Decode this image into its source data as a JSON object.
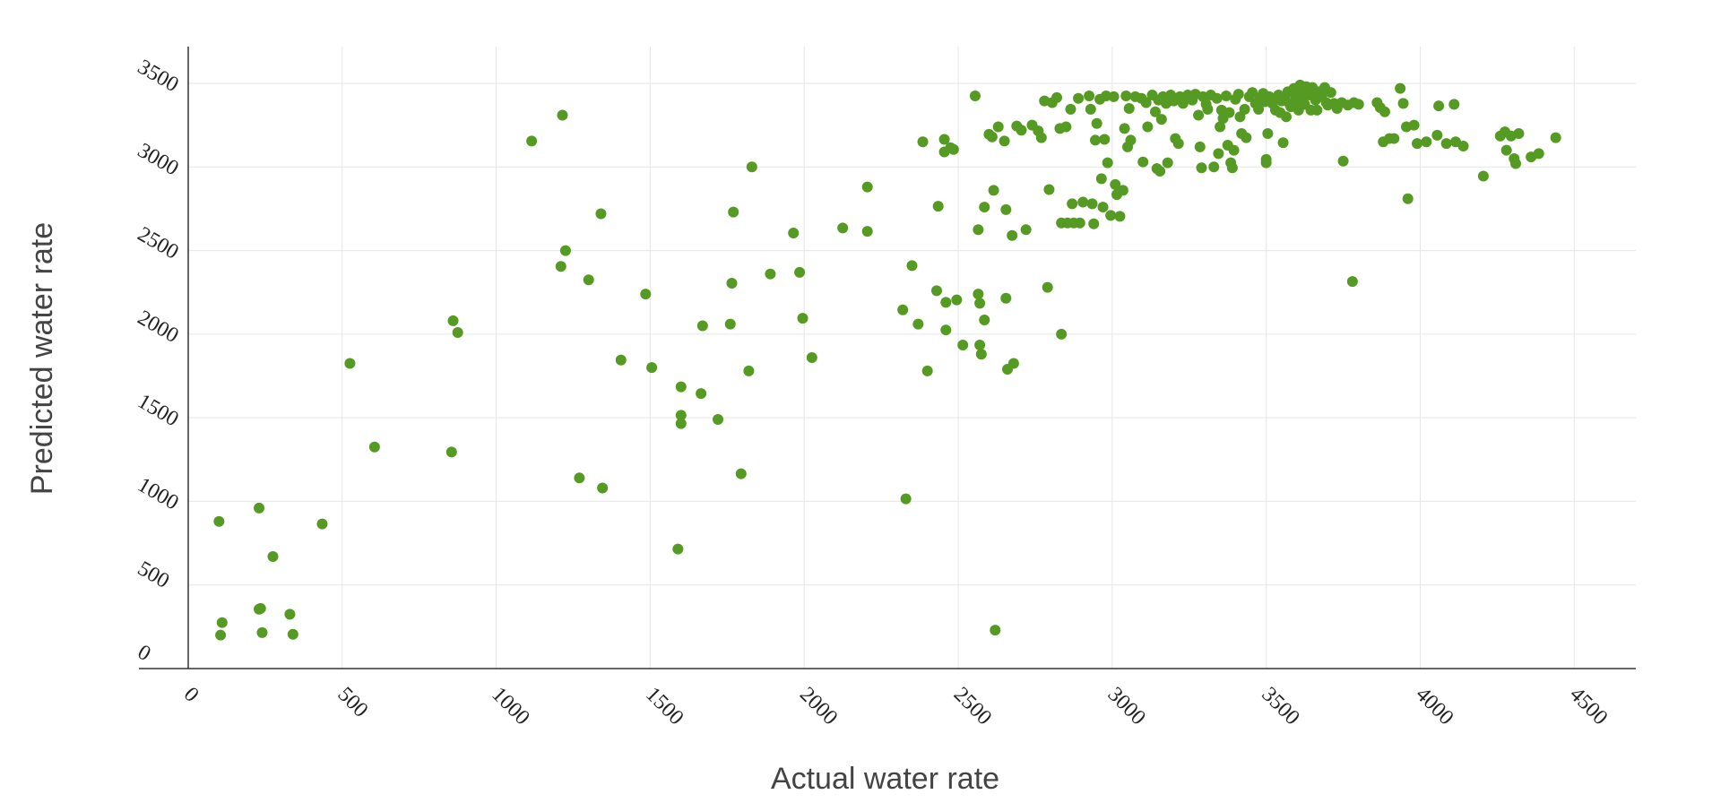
{
  "chart_data": {
    "type": "scatter",
    "title": "",
    "xlabel": "Actual water rate",
    "ylabel": "Predicted water rate",
    "xlim": [
      0,
      4700
    ],
    "ylim": [
      0,
      3500
    ],
    "xticks": [
      0,
      500,
      1000,
      1500,
      2000,
      2500,
      3000,
      3500,
      4000,
      4500
    ],
    "yticks": [
      0,
      500,
      1000,
      1500,
      2000,
      2500,
      3000,
      3500
    ],
    "xtick_labels": [
      "0",
      "500",
      "1000",
      "1500",
      "2000",
      "2500",
      "3000",
      "3500",
      "4000",
      "4500"
    ],
    "ytick_labels": [
      "0",
      "500",
      "1000",
      "1500",
      "2000",
      "2500",
      "3000",
      "3500"
    ],
    "grid": true,
    "legend": "none",
    "point_color": "#559a22",
    "series": [
      {
        "points": [
          [
            100,
            880
          ],
          [
            230,
            960
          ],
          [
            275,
            670
          ],
          [
            435,
            865
          ],
          [
            110,
            275
          ],
          [
            230,
            355
          ],
          [
            235,
            360
          ],
          [
            330,
            325
          ],
          [
            105,
            200
          ],
          [
            240,
            215
          ],
          [
            340,
            205
          ],
          [
            525,
            1825
          ],
          [
            605,
            1325
          ],
          [
            855,
            1295
          ],
          [
            860,
            2080
          ],
          [
            875,
            2010
          ],
          [
            1115,
            3155
          ],
          [
            1215,
            3310
          ],
          [
            1210,
            2405
          ],
          [
            1225,
            2500
          ],
          [
            1300,
            2325
          ],
          [
            1340,
            2720
          ],
          [
            1270,
            1140
          ],
          [
            1345,
            1080
          ],
          [
            1485,
            2240
          ],
          [
            1405,
            1845
          ],
          [
            1505,
            1800
          ],
          [
            1590,
            715
          ],
          [
            1600,
            1685
          ],
          [
            1600,
            1515
          ],
          [
            1600,
            1465
          ],
          [
            1665,
            1645
          ],
          [
            1670,
            2050
          ],
          [
            1720,
            1490
          ],
          [
            1760,
            2060
          ],
          [
            1765,
            2305
          ],
          [
            1770,
            2730
          ],
          [
            1795,
            1165
          ],
          [
            1820,
            1780
          ],
          [
            1830,
            3000
          ],
          [
            1890,
            2360
          ],
          [
            1965,
            2605
          ],
          [
            1985,
            2370
          ],
          [
            1995,
            2095
          ],
          [
            2025,
            1860
          ],
          [
            2125,
            2635
          ],
          [
            2205,
            2615
          ],
          [
            2205,
            2880
          ],
          [
            2320,
            2145
          ],
          [
            2330,
            1015
          ],
          [
            2350,
            2410
          ],
          [
            2370,
            2060
          ],
          [
            2385,
            3150
          ],
          [
            2400,
            1780
          ],
          [
            2430,
            2260
          ],
          [
            2435,
            2765
          ],
          [
            2455,
            3090
          ],
          [
            2455,
            3165
          ],
          [
            2460,
            2190
          ],
          [
            2460,
            2025
          ],
          [
            2475,
            3115
          ],
          [
            2485,
            3105
          ],
          [
            2495,
            2205
          ],
          [
            2515,
            1935
          ],
          [
            2555,
            3425
          ],
          [
            2565,
            2625
          ],
          [
            2565,
            2240
          ],
          [
            2570,
            2185
          ],
          [
            2570,
            1935
          ],
          [
            2575,
            1880
          ],
          [
            2585,
            2760
          ],
          [
            2585,
            2085
          ],
          [
            2600,
            3195
          ],
          [
            2610,
            3180
          ],
          [
            2615,
            2860
          ],
          [
            2620,
            230
          ],
          [
            2630,
            3240
          ],
          [
            2650,
            3155
          ],
          [
            2655,
            2215
          ],
          [
            2655,
            2745
          ],
          [
            2660,
            1790
          ],
          [
            2675,
            2590
          ],
          [
            2680,
            1825
          ],
          [
            2690,
            3245
          ],
          [
            2705,
            3220
          ],
          [
            2720,
            2625
          ],
          [
            2740,
            3250
          ],
          [
            2760,
            3215
          ],
          [
            2770,
            3175
          ],
          [
            2780,
            3395
          ],
          [
            2790,
            2280
          ],
          [
            2795,
            2865
          ],
          [
            2805,
            3385
          ],
          [
            2820,
            3415
          ],
          [
            2830,
            3230
          ],
          [
            2835,
            2665
          ],
          [
            2835,
            2000
          ],
          [
            2850,
            3240
          ],
          [
            2855,
            2665
          ],
          [
            2865,
            3345
          ],
          [
            2870,
            2780
          ],
          [
            2875,
            2665
          ],
          [
            2890,
            3410
          ],
          [
            2895,
            2665
          ],
          [
            2905,
            2790
          ],
          [
            2925,
            3425
          ],
          [
            2930,
            3345
          ],
          [
            2935,
            2780
          ],
          [
            2940,
            2660
          ],
          [
            2945,
            3160
          ],
          [
            2950,
            3260
          ],
          [
            2960,
            3405
          ],
          [
            2965,
            2930
          ],
          [
            2970,
            2760
          ],
          [
            2975,
            3165
          ],
          [
            2980,
            3425
          ],
          [
            2985,
            3025
          ],
          [
            2995,
            2710
          ],
          [
            3005,
            3420
          ],
          [
            3010,
            2895
          ],
          [
            3015,
            2835
          ],
          [
            3025,
            2705
          ],
          [
            3035,
            2860
          ],
          [
            3040,
            3230
          ],
          [
            3045,
            3425
          ],
          [
            3050,
            3120
          ],
          [
            3055,
            3350
          ],
          [
            3060,
            3160
          ],
          [
            3075,
            3420
          ],
          [
            3095,
            3410
          ],
          [
            3100,
            3030
          ],
          [
            3110,
            3385
          ],
          [
            3115,
            3240
          ],
          [
            3130,
            3430
          ],
          [
            3140,
            3330
          ],
          [
            3145,
            2990
          ],
          [
            3150,
            3400
          ],
          [
            3155,
            2975
          ],
          [
            3160,
            3285
          ],
          [
            3165,
            3420
          ],
          [
            3175,
            3380
          ],
          [
            3180,
            3025
          ],
          [
            3190,
            3430
          ],
          [
            3200,
            3395
          ],
          [
            3205,
            3170
          ],
          [
            3215,
            3140
          ],
          [
            3220,
            3420
          ],
          [
            3230,
            3380
          ],
          [
            3245,
            3430
          ],
          [
            3260,
            3400
          ],
          [
            3270,
            3435
          ],
          [
            3280,
            3310
          ],
          [
            3285,
            3120
          ],
          [
            3290,
            2995
          ],
          [
            3295,
            3420
          ],
          [
            3305,
            3375
          ],
          [
            3310,
            3345
          ],
          [
            3320,
            3430
          ],
          [
            3330,
            3000
          ],
          [
            3340,
            3410
          ],
          [
            3345,
            3080
          ],
          [
            3350,
            3240
          ],
          [
            3355,
            3340
          ],
          [
            3360,
            3290
          ],
          [
            3370,
            3425
          ],
          [
            3375,
            3130
          ],
          [
            3380,
            3325
          ],
          [
            3385,
            3025
          ],
          [
            3390,
            2995
          ],
          [
            3395,
            3100
          ],
          [
            3400,
            3405
          ],
          [
            3410,
            3435
          ],
          [
            3415,
            3300
          ],
          [
            3420,
            3200
          ],
          [
            3430,
            3345
          ],
          [
            3435,
            3175
          ],
          [
            3445,
            3420
          ],
          [
            3455,
            3445
          ],
          [
            3465,
            3380
          ],
          [
            3475,
            3345
          ],
          [
            3480,
            3410
          ],
          [
            3490,
            3440
          ],
          [
            3495,
            3390
          ],
          [
            3500,
            3045
          ],
          [
            3500,
            3025
          ],
          [
            3505,
            3200
          ],
          [
            3510,
            3420
          ],
          [
            3520,
            3380
          ],
          [
            3530,
            3340
          ],
          [
            3540,
            3430
          ],
          [
            3545,
            3325
          ],
          [
            3550,
            3395
          ],
          [
            3555,
            3145
          ],
          [
            3560,
            3415
          ],
          [
            3565,
            3300
          ],
          [
            3570,
            3450
          ],
          [
            3575,
            3380
          ],
          [
            3580,
            3360
          ],
          [
            3590,
            3470
          ],
          [
            3595,
            3420
          ],
          [
            3600,
            3385
          ],
          [
            3605,
            3340
          ],
          [
            3610,
            3490
          ],
          [
            3615,
            3405
          ],
          [
            3620,
            3455
          ],
          [
            3625,
            3375
          ],
          [
            3630,
            3480
          ],
          [
            3640,
            3430
          ],
          [
            3645,
            3340
          ],
          [
            3650,
            3475
          ],
          [
            3660,
            3400
          ],
          [
            3665,
            3340
          ],
          [
            3670,
            3450
          ],
          [
            3680,
            3420
          ],
          [
            3690,
            3475
          ],
          [
            3695,
            3385
          ],
          [
            3700,
            3370
          ],
          [
            3710,
            3445
          ],
          [
            3720,
            3380
          ],
          [
            3730,
            3350
          ],
          [
            3745,
            3385
          ],
          [
            3750,
            3035
          ],
          [
            3765,
            3370
          ],
          [
            3780,
            2315
          ],
          [
            3785,
            3385
          ],
          [
            3800,
            3375
          ],
          [
            3860,
            3385
          ],
          [
            3870,
            3355
          ],
          [
            3880,
            3150
          ],
          [
            3885,
            3330
          ],
          [
            3900,
            3170
          ],
          [
            3915,
            3170
          ],
          [
            3935,
            3470
          ],
          [
            3945,
            3380
          ],
          [
            3955,
            3240
          ],
          [
            3960,
            2810
          ],
          [
            3980,
            3250
          ],
          [
            3990,
            3140
          ],
          [
            4020,
            3150
          ],
          [
            4055,
            3190
          ],
          [
            4060,
            3365
          ],
          [
            4085,
            3140
          ],
          [
            4110,
            3375
          ],
          [
            4115,
            3150
          ],
          [
            4140,
            3125
          ],
          [
            4205,
            2945
          ],
          [
            4260,
            3185
          ],
          [
            4275,
            3210
          ],
          [
            4280,
            3100
          ],
          [
            4295,
            3185
          ],
          [
            4305,
            3050
          ],
          [
            4310,
            3020
          ],
          [
            4320,
            3200
          ],
          [
            4360,
            3060
          ],
          [
            4385,
            3080
          ],
          [
            4440,
            3175
          ]
        ]
      }
    ]
  }
}
